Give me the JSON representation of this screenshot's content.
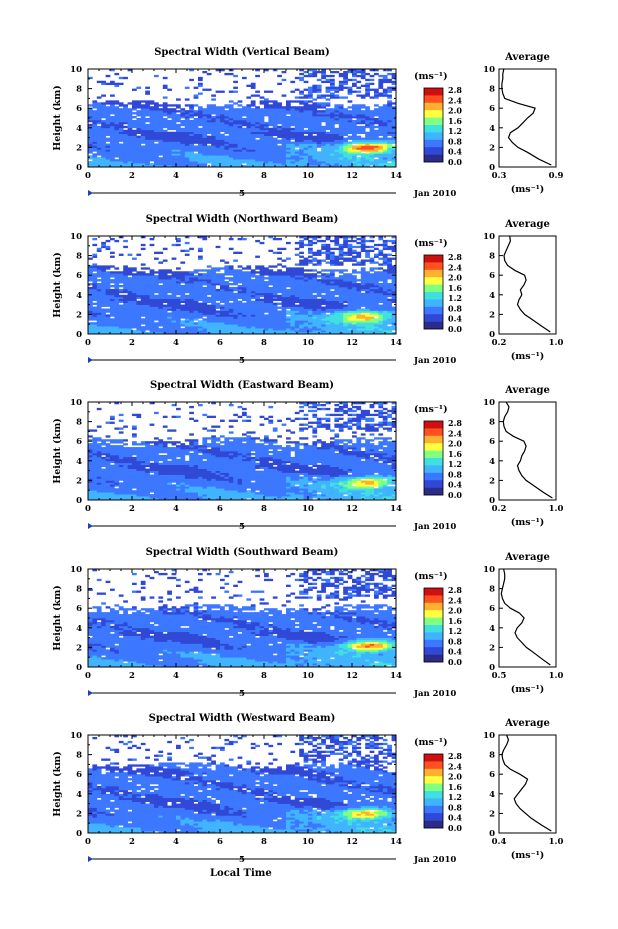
{
  "figure": {
    "x_axis_label": "Local Time",
    "date_label": "Jan 2010",
    "day_marker": "5",
    "y_axis_label": "Height (km)",
    "colorbar_unit": "(ms⁻¹)",
    "avg_title": "Average",
    "avg_unit": "(ms⁻¹)"
  },
  "colors": {
    "colormap": [
      "#2b2b8a",
      "#3048d6",
      "#3c78ff",
      "#40b4ff",
      "#40e0e0",
      "#80ff80",
      "#ffff40",
      "#ffb030",
      "#ff5020",
      "#d01010"
    ]
  },
  "chart_data": [
    {
      "type": "heatmap",
      "title": "Spectral Width (Vertical Beam)",
      "x_ticks": [
        0,
        2,
        4,
        6,
        8,
        10,
        12,
        14
      ],
      "y_ticks": [
        0,
        2,
        4,
        6,
        8,
        10
      ],
      "xlim": [
        0,
        14
      ],
      "ylim": [
        0,
        10
      ],
      "colorbar_ticks": [
        "2.8",
        "2.4",
        "2.0",
        "1.6",
        "1.2",
        "0.8",
        "0.4",
        "0.0"
      ],
      "clim": [
        0,
        2.8
      ],
      "echo_top_km": 6.6,
      "upper_patch_top_km": 10,
      "hot_spot": {
        "x": 12.7,
        "y": 2.0,
        "value": 2.4
      },
      "average_profile": {
        "xlim": [
          0.3,
          0.9
        ],
        "x_ticks": [
          "0.3",
          "0.9"
        ],
        "height_km": [
          0.2,
          0.8,
          1.5,
          2.0,
          2.5,
          3.0,
          3.5,
          4.0,
          4.5,
          5.0,
          5.5,
          6.0,
          6.5,
          7.0,
          7.5,
          8.0,
          8.5,
          9.0,
          9.5,
          10.0
        ],
        "value": [
          0.85,
          0.72,
          0.6,
          0.5,
          0.44,
          0.4,
          0.42,
          0.5,
          0.55,
          0.6,
          0.66,
          0.68,
          0.5,
          0.36,
          0.34,
          0.33,
          0.33,
          0.34,
          0.34,
          0.35
        ]
      }
    },
    {
      "type": "heatmap",
      "title": "Spectral Width (Northward Beam)",
      "x_ticks": [
        0,
        2,
        4,
        6,
        8,
        10,
        12,
        14
      ],
      "y_ticks": [
        0,
        2,
        4,
        6,
        8,
        10
      ],
      "xlim": [
        0,
        14
      ],
      "ylim": [
        0,
        10
      ],
      "colorbar_ticks": [
        "2.8",
        "2.4",
        "2.0",
        "1.6",
        "1.2",
        "0.8",
        "0.4",
        "0.0"
      ],
      "clim": [
        0,
        2.8
      ],
      "echo_top_km": 6.8,
      "upper_patch_top_km": 10,
      "hot_spot": {
        "x": 12.5,
        "y": 1.8,
        "value": 2.0
      },
      "average_profile": {
        "xlim": [
          0.2,
          1.0
        ],
        "x_ticks": [
          "0.2",
          "1.0"
        ],
        "height_km": [
          0.2,
          0.8,
          1.5,
          2.0,
          2.5,
          3.0,
          3.5,
          4.0,
          4.5,
          5.0,
          5.5,
          6.0,
          6.5,
          7.0,
          7.5,
          8.0,
          8.5,
          9.0,
          9.5,
          10.0
        ],
        "value": [
          0.92,
          0.8,
          0.66,
          0.56,
          0.5,
          0.46,
          0.48,
          0.52,
          0.5,
          0.55,
          0.58,
          0.56,
          0.42,
          0.32,
          0.28,
          0.27,
          0.3,
          0.33,
          0.36,
          0.35
        ]
      }
    },
    {
      "type": "heatmap",
      "title": "Spectral Width (Eastward Beam)",
      "x_ticks": [
        0,
        2,
        4,
        6,
        8,
        10,
        12,
        14
      ],
      "y_ticks": [
        0,
        2,
        4,
        6,
        8,
        10
      ],
      "xlim": [
        0,
        14
      ],
      "ylim": [
        0,
        10
      ],
      "colorbar_ticks": [
        "2.8",
        "2.4",
        "2.0",
        "1.6",
        "1.2",
        "0.8",
        "0.4",
        "0.0"
      ],
      "clim": [
        0,
        2.8
      ],
      "echo_top_km": 6.2,
      "upper_patch_top_km": 10,
      "hot_spot": {
        "x": 12.7,
        "y": 1.8,
        "value": 2.0
      },
      "average_profile": {
        "xlim": [
          0.2,
          1.0
        ],
        "x_ticks": [
          "0.2",
          "1.0"
        ],
        "height_km": [
          0.2,
          0.8,
          1.5,
          2.0,
          2.5,
          3.0,
          3.5,
          4.0,
          4.5,
          5.0,
          5.5,
          6.0,
          6.5,
          7.0,
          7.5,
          8.0,
          8.5,
          9.0,
          9.5,
          10.0
        ],
        "value": [
          0.95,
          0.82,
          0.68,
          0.58,
          0.52,
          0.48,
          0.46,
          0.5,
          0.52,
          0.56,
          0.58,
          0.55,
          0.4,
          0.3,
          0.27,
          0.26,
          0.28,
          0.32,
          0.34,
          0.3
        ]
      }
    },
    {
      "type": "heatmap",
      "title": "Spectral Width (Southward Beam)",
      "x_ticks": [
        0,
        2,
        4,
        6,
        8,
        10,
        12,
        14
      ],
      "y_ticks": [
        0,
        2,
        4,
        6,
        8,
        10
      ],
      "xlim": [
        0,
        14
      ],
      "ylim": [
        0,
        10
      ],
      "colorbar_ticks": [
        "2.8",
        "2.4",
        "2.0",
        "1.6",
        "1.2",
        "0.8",
        "0.4",
        "0.0"
      ],
      "clim": [
        0,
        2.8
      ],
      "echo_top_km": 6.2,
      "upper_patch_top_km": 10,
      "hot_spot": {
        "x": 12.8,
        "y": 2.2,
        "value": 2.2
      },
      "average_profile": {
        "xlim": [
          0.5,
          1.0
        ],
        "x_ticks": [
          "0.5",
          "1.0"
        ],
        "height_km": [
          0.2,
          0.8,
          1.5,
          2.0,
          2.5,
          3.0,
          3.5,
          4.0,
          4.5,
          5.0,
          5.5,
          6.0,
          6.5,
          7.0,
          7.5,
          8.0,
          8.5,
          9.0,
          9.5,
          10.0
        ],
        "value": [
          0.95,
          0.88,
          0.8,
          0.74,
          0.7,
          0.66,
          0.64,
          0.66,
          0.7,
          0.72,
          0.68,
          0.6,
          0.55,
          0.53,
          0.52,
          0.53,
          0.54,
          0.55,
          0.55,
          0.54
        ]
      }
    },
    {
      "type": "heatmap",
      "title": "Spectral Width (Westward Beam)",
      "x_ticks": [
        0,
        2,
        4,
        6,
        8,
        10,
        12,
        14
      ],
      "y_ticks": [
        0,
        2,
        4,
        6,
        8,
        10
      ],
      "xlim": [
        0,
        14
      ],
      "ylim": [
        0,
        10
      ],
      "colorbar_ticks": [
        "2.8",
        "2.4",
        "2.0",
        "1.6",
        "1.2",
        "0.8",
        "0.4",
        "0.0"
      ],
      "clim": [
        0,
        2.8
      ],
      "echo_top_km": 7.0,
      "upper_patch_top_km": 10,
      "hot_spot": {
        "x": 12.6,
        "y": 2.0,
        "value": 2.0
      },
      "average_profile": {
        "xlim": [
          0.4,
          1.0
        ],
        "x_ticks": [
          "0.4",
          "1.0"
        ],
        "height_km": [
          0.2,
          0.8,
          1.5,
          2.0,
          2.5,
          3.0,
          3.5,
          4.0,
          4.5,
          5.0,
          5.5,
          6.0,
          6.5,
          7.0,
          7.5,
          8.0,
          8.5,
          9.0,
          9.5,
          10.0
        ],
        "value": [
          0.95,
          0.85,
          0.74,
          0.68,
          0.62,
          0.58,
          0.56,
          0.6,
          0.64,
          0.68,
          0.7,
          0.62,
          0.52,
          0.46,
          0.44,
          0.43,
          0.45,
          0.48,
          0.5,
          0.48
        ]
      }
    }
  ]
}
